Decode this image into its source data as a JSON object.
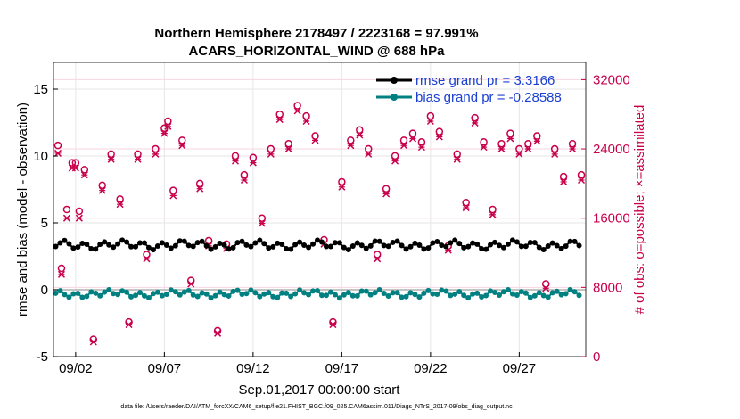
{
  "chart_data": {
    "type": "line",
    "title": [
      "Northern Hemisphere 2178497 / 2223168 = 97.991%",
      "ACARS_HORIZONTAL_WIND @ 688 hPa"
    ],
    "xlabel": "Sep.01,2017 00:00:00 start",
    "ylabel_left": "rmse and bias (model - observation)",
    "ylabel_right": "# of obs: o=possible; ×=assimilated",
    "footnote": "data file: /Users/raeder/DAI/ATM_forcXX/CAM6_setup/f.e21.FHIST_BGC.f09_025.CAM6assim.011/Diags_NTrS_2017-09/obs_diag_output.nc",
    "x_ticks": [
      {
        "day": 2,
        "label": "09/02"
      },
      {
        "day": 7,
        "label": "09/07"
      },
      {
        "day": 12,
        "label": "09/12"
      },
      {
        "day": 17,
        "label": "09/17"
      },
      {
        "day": 22,
        "label": "09/22"
      },
      {
        "day": 27,
        "label": "09/27"
      }
    ],
    "xlim": [
      0.75,
      30.75
    ],
    "ylim_left": [
      -5,
      17
    ],
    "yticks_left": [
      -5,
      0,
      5,
      10,
      15
    ],
    "ylim_right": [
      0,
      34000
    ],
    "yticks_right": [
      0,
      8000,
      16000,
      24000,
      32000
    ],
    "grid": true,
    "legend_position": "top-right",
    "series": [
      {
        "name": "rmse grand pr = 3.3166",
        "axis": "left",
        "color": "#000000",
        "base": 3.35,
        "amp": 0.25,
        "period": 1.1
      },
      {
        "name": "bias grand pr = -0.28588",
        "axis": "left",
        "color": "#008080",
        "base": -0.3,
        "amp": 0.2,
        "period": 0.9
      },
      {
        "name": "possible",
        "axis": "right",
        "marker": "o",
        "color": "#c8004b",
        "x": [
          1.0,
          1.2,
          1.5,
          1.8,
          2.0,
          2.2,
          2.5,
          3.0,
          3.5,
          4.0,
          4.5,
          5.0,
          5.5,
          6.0,
          6.5,
          7.0,
          7.2,
          7.5,
          8.0,
          8.5,
          9.0,
          9.5,
          10.0,
          10.5,
          11.0,
          11.5,
          12.0,
          12.5,
          13.0,
          13.5,
          14.0,
          14.5,
          15.0,
          15.5,
          16.0,
          16.5,
          17.0,
          17.5,
          18.0,
          18.5,
          19.0,
          19.5,
          20.0,
          20.5,
          21.0,
          21.5,
          22.0,
          22.5,
          23.0,
          23.5,
          24.0,
          24.5,
          25.0,
          25.5,
          26.0,
          26.5,
          27.0,
          27.5,
          28.0,
          28.5,
          29.0,
          29.5,
          30.0,
          30.5
        ],
        "y": [
          24400,
          10200,
          17000,
          22400,
          22400,
          16800,
          21600,
          2000,
          19800,
          23400,
          18200,
          4000,
          23400,
          11800,
          24000,
          26400,
          27200,
          19200,
          25000,
          8800,
          20000,
          13400,
          3000,
          13000,
          23200,
          21000,
          23000,
          16000,
          24000,
          28000,
          24600,
          29000,
          27800,
          25500,
          13500,
          4000,
          20200,
          25000,
          26200,
          24000,
          11800,
          19400,
          23200,
          25000,
          25800,
          24800,
          27800,
          26000,
          12800,
          23400,
          17800,
          27600,
          24800,
          17000,
          24600,
          25800,
          24000,
          24600,
          25500,
          8400,
          24000,
          20800,
          24600,
          21000
        ]
      },
      {
        "name": "assimilated",
        "axis": "right",
        "marker": "x",
        "color": "#c8004b",
        "x": [
          1.0,
          1.2,
          1.5,
          1.8,
          2.0,
          2.2,
          2.5,
          3.0,
          3.5,
          4.0,
          4.5,
          5.0,
          5.5,
          6.0,
          6.5,
          7.0,
          7.2,
          7.5,
          8.0,
          8.5,
          9.0,
          9.5,
          10.0,
          10.5,
          11.0,
          11.5,
          12.0,
          12.5,
          13.0,
          13.5,
          14.0,
          14.5,
          15.0,
          15.5,
          16.0,
          16.5,
          17.0,
          17.5,
          18.0,
          18.5,
          19.0,
          19.5,
          20.0,
          20.5,
          21.0,
          21.5,
          22.0,
          22.5,
          23.0,
          23.5,
          24.0,
          24.5,
          25.0,
          25.5,
          26.0,
          26.5,
          27.0,
          27.5,
          28.0,
          28.5,
          29.0,
          29.5,
          30.0,
          30.5
        ],
        "y": [
          23500,
          9500,
          16000,
          21800,
          21800,
          16000,
          21000,
          1700,
          19200,
          22800,
          17600,
          3700,
          22800,
          11300,
          23400,
          25800,
          26600,
          18600,
          24400,
          8400,
          19400,
          12800,
          2700,
          12500,
          22600,
          20400,
          22400,
          15400,
          23400,
          27400,
          24000,
          28400,
          27200,
          25000,
          13000,
          3700,
          19600,
          24400,
          25600,
          23400,
          11300,
          18800,
          22600,
          24400,
          25200,
          24200,
          27200,
          25400,
          12300,
          22800,
          17200,
          27000,
          24200,
          16400,
          24000,
          25200,
          23400,
          24000,
          24900,
          7900,
          23400,
          20200,
          24000,
          20400
        ]
      }
    ]
  }
}
